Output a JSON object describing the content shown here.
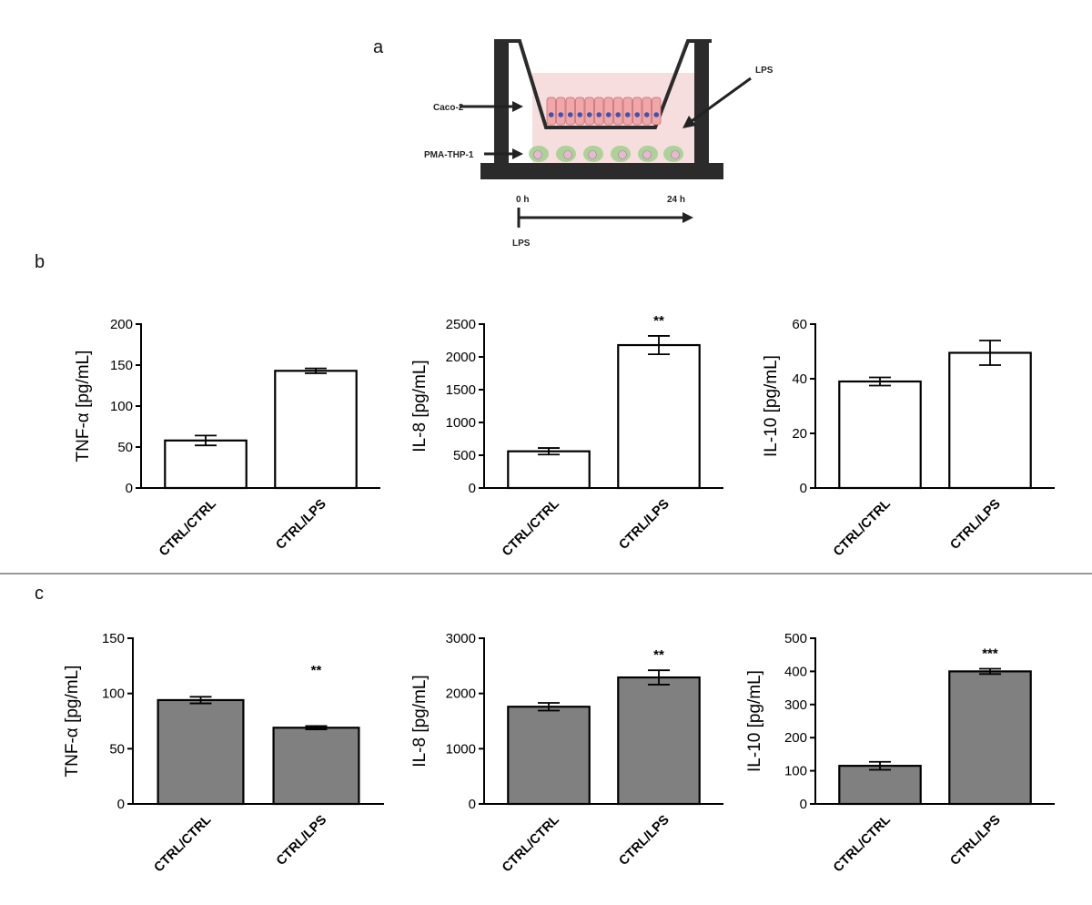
{
  "panel_labels": {
    "a": "a",
    "b": "b",
    "c": "c"
  },
  "diagram": {
    "caco2_label": "Caco-2",
    "thp1_label": "PMA-THP-1",
    "lps_apical_label": "LPS",
    "time_start": "0 h",
    "time_end": "24 h",
    "lps_timeline_label": "LPS",
    "colors": {
      "wall": "#2b2b2b",
      "medium": "#f6dede",
      "cell": "#f2a6a8",
      "nucleus": "#3b55b0",
      "macrophage": "#9fd08c",
      "macrophage_nucleus": "#e8b8d0"
    }
  },
  "chart_data": [
    {
      "id": "b-tnfa",
      "type": "bar",
      "row": "b",
      "categories": [
        "CTRL/CTRL",
        "CTRL/LPS"
      ],
      "values": [
        58,
        143
      ],
      "errors": [
        6,
        3
      ],
      "ylabel": "TNF-α [pg/mL]",
      "ylim": [
        0,
        200
      ],
      "yticks": [
        0,
        50,
        100,
        150,
        200
      ],
      "significance": [
        "",
        ""
      ],
      "bar_color": "#ffffff"
    },
    {
      "id": "b-il8",
      "type": "bar",
      "row": "b",
      "categories": [
        "CTRL/CTRL",
        "CTRL/LPS"
      ],
      "values": [
        560,
        2180
      ],
      "errors": [
        50,
        140
      ],
      "ylabel": "IL-8 [pg/mL]",
      "ylim": [
        0,
        2500
      ],
      "yticks": [
        0,
        500,
        1000,
        1500,
        2000,
        2500
      ],
      "significance": [
        "",
        "**"
      ],
      "bar_color": "#ffffff"
    },
    {
      "id": "b-il10",
      "type": "bar",
      "row": "b",
      "categories": [
        "CTRL/CTRL",
        "CTRL/LPS"
      ],
      "values": [
        39,
        49.5
      ],
      "errors": [
        1.5,
        4.5
      ],
      "ylabel": "IL-10 [pg/mL]",
      "ylim": [
        0,
        60
      ],
      "yticks": [
        0,
        20,
        40,
        60
      ],
      "significance": [
        "",
        ""
      ],
      "bar_color": "#ffffff"
    },
    {
      "id": "c-tnfa",
      "type": "bar",
      "row": "c",
      "categories": [
        "CTRL/CTRL",
        "CTRL/LPS"
      ],
      "values": [
        94,
        69
      ],
      "errors": [
        3,
        1.5
      ],
      "ylabel": "TNF-α [pg/mL]",
      "ylim": [
        0,
        150
      ],
      "yticks": [
        0,
        50,
        100,
        150
      ],
      "significance": [
        "",
        "**"
      ],
      "bar_color": "#808080"
    },
    {
      "id": "c-il8",
      "type": "bar",
      "row": "c",
      "categories": [
        "CTRL/CTRL",
        "CTRL/LPS"
      ],
      "values": [
        1760,
        2290
      ],
      "errors": [
        70,
        130
      ],
      "ylabel": "IL-8 [pg/mL]",
      "ylim": [
        0,
        3000
      ],
      "yticks": [
        0,
        1000,
        2000,
        3000
      ],
      "significance": [
        "",
        "**"
      ],
      "bar_color": "#808080"
    },
    {
      "id": "c-il10",
      "type": "bar",
      "row": "c",
      "categories": [
        "CTRL/CTRL",
        "CTRL/LPS"
      ],
      "values": [
        115,
        400
      ],
      "errors": [
        12,
        8
      ],
      "ylabel": "IL-10 [pg/mL]",
      "ylim": [
        0,
        500
      ],
      "yticks": [
        0,
        100,
        200,
        300,
        400,
        500
      ],
      "significance": [
        "",
        "***"
      ],
      "bar_color": "#808080"
    }
  ]
}
